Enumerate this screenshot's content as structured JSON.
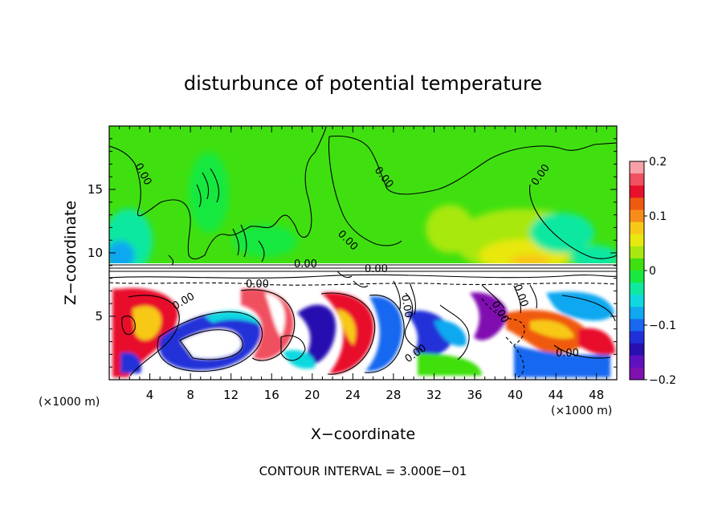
{
  "chart_data": {
    "type": "heatmap",
    "title": "disturbunce of potential temperature",
    "xlabel": "X−coordinate",
    "ylabel": "Z−coordinate",
    "x_unit": "(×1000 m)",
    "x_unit_right": "(×1000 m)",
    "footer": "CONTOUR INTERVAL = 3.000E−01",
    "xlim": [
      0,
      50
    ],
    "ylim": [
      0,
      20
    ],
    "x_ticks": [
      4,
      8,
      12,
      16,
      20,
      24,
      28,
      32,
      36,
      40,
      44,
      48
    ],
    "x_tick_labels": [
      "4",
      "8",
      "12",
      "16",
      "20",
      "24",
      "28",
      "32",
      "36",
      "40",
      "44",
      "48"
    ],
    "y_ticks": [
      5,
      10,
      15
    ],
    "y_tick_labels": [
      "5",
      "10",
      "15"
    ],
    "colorbar": {
      "min": -0.2,
      "max": 0.2,
      "ticks": [
        0.2,
        0.1,
        0,
        -0.1,
        -0.2
      ],
      "tick_labels": [
        "0.2",
        "0.1",
        "0",
        "−0.1",
        "−0.2"
      ],
      "colors": [
        "#f7a0a8",
        "#f05060",
        "#e8102a",
        "#f05a10",
        "#f88c18",
        "#f8c818",
        "#e8e810",
        "#a8e810",
        "#40e010",
        "#18e840",
        "#10e8a0",
        "#10d8e0",
        "#10a8f0",
        "#1868f0",
        "#2030d8",
        "#2810b0",
        "#6010c0",
        "#8010b0"
      ]
    },
    "contour_labels": [
      "0.00",
      "0.00",
      "0.00",
      "0.00",
      "0.00",
      "0.00",
      "0.00",
      "0.00",
      "0.00",
      "0.00",
      "0.00",
      "0.00",
      "0.00"
    ],
    "contour_interval": 0.3,
    "grid": false
  }
}
